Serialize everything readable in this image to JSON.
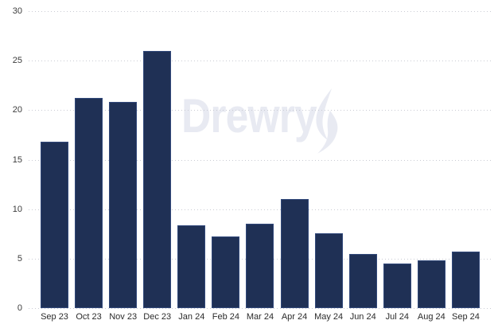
{
  "chart_data": {
    "type": "bar",
    "categories": [
      "Sep 23",
      "Oct 23",
      "Nov 23",
      "Dec 23",
      "Jan 24",
      "Feb 24",
      "Mar 24",
      "Apr 24",
      "May 24",
      "Jun 24",
      "Jul 24",
      "Aug 24",
      "Sep 24"
    ],
    "values": [
      16.8,
      21.2,
      20.8,
      26.0,
      8.4,
      7.2,
      8.5,
      11.0,
      7.6,
      5.5,
      4.5,
      4.8,
      5.7
    ],
    "xlabel": "",
    "ylabel": "",
    "ylim": [
      0,
      30
    ],
    "yticks": [
      0,
      5,
      10,
      15,
      20,
      25,
      30
    ],
    "grid": "horizontal-dotted",
    "legend": "none"
  },
  "watermark": {
    "text": "Drewry",
    "icon": "drewry-flame-icon"
  },
  "colors": {
    "background": "#ffffff",
    "bar_fill": "#1F3055",
    "bar_border": "#32497B",
    "gridline": "#c9cbd3",
    "ytick_label": "#3c3c3c",
    "xtick_label": "#2b2b2b",
    "watermark": "#e8eaf2"
  }
}
